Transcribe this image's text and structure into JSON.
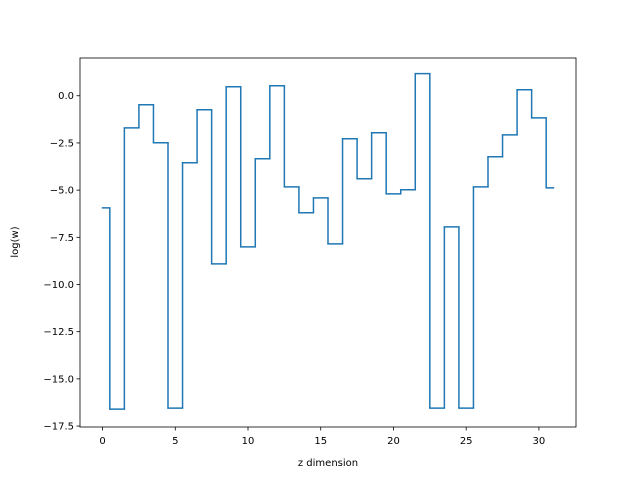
{
  "chart_data": {
    "type": "step",
    "step": "mid",
    "xlabel": "z dimension",
    "ylabel": "log(w)",
    "color": "#1f77b4",
    "x": [
      0,
      1,
      2,
      3,
      4,
      5,
      6,
      7,
      8,
      9,
      10,
      11,
      12,
      13,
      14,
      15,
      16,
      17,
      18,
      19,
      20,
      21,
      22,
      23,
      24,
      25,
      26,
      27,
      28,
      29,
      30,
      31
    ],
    "values": [
      -5.94,
      -16.6,
      -1.7,
      -0.48,
      -2.49,
      -16.55,
      -3.55,
      -0.74,
      -8.91,
      0.48,
      -8.01,
      -3.34,
      0.53,
      -4.83,
      -6.2,
      -5.41,
      -7.85,
      -2.28,
      -4.4,
      -1.96,
      -5.2,
      -4.98,
      1.17,
      -16.55,
      -6.95,
      -16.55,
      -4.83,
      -3.23,
      -2.07,
      0.32,
      -1.17,
      -4.88
    ],
    "xlim": [
      -1.55,
      32.55
    ],
    "ylim": [
      -17.55,
      2.0
    ],
    "xticks": [
      0,
      5,
      10,
      15,
      20,
      25,
      30
    ],
    "yticks": [
      {
        "value": 0,
        "label": "0.0"
      },
      {
        "value": -2.5,
        "label": "−2.5"
      },
      {
        "value": -5,
        "label": "−5.0"
      },
      {
        "value": -7.5,
        "label": "−7.5"
      },
      {
        "value": -10,
        "label": "−10.0"
      },
      {
        "value": -12.5,
        "label": "−12.5"
      },
      {
        "value": -15,
        "label": "−15.0"
      },
      {
        "value": -17.5,
        "label": "−17.5"
      }
    ]
  }
}
